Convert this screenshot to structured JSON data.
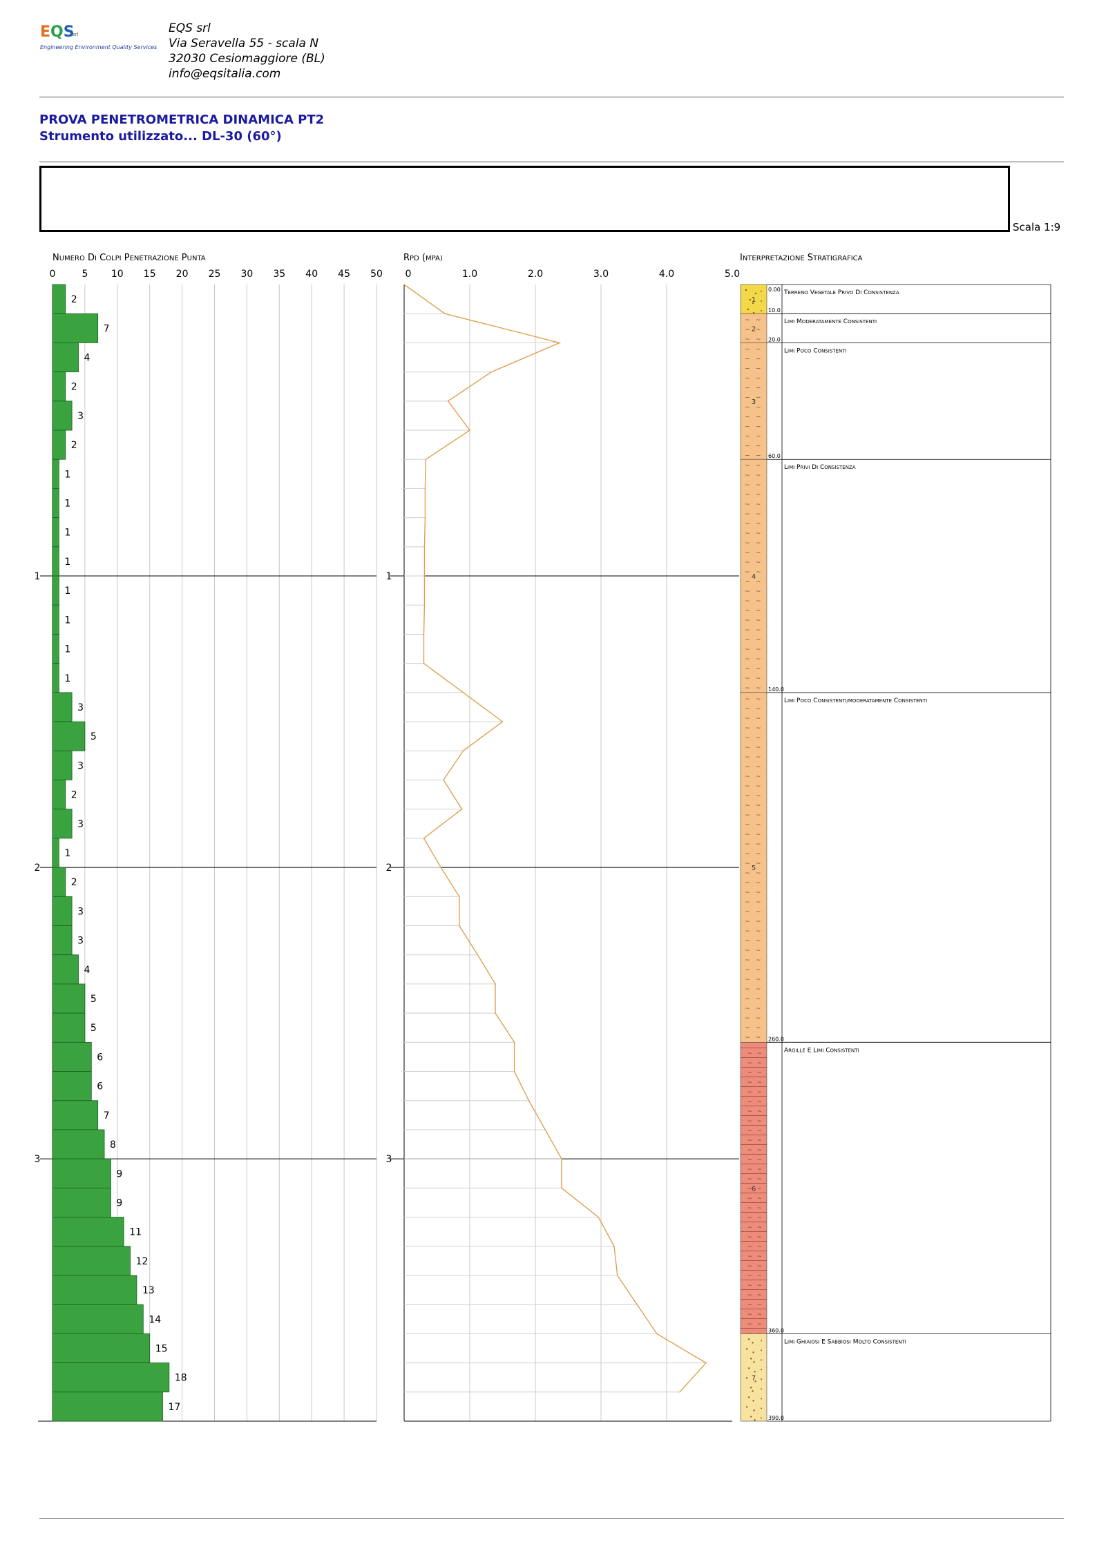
{
  "company": {
    "logo_text": "EQS",
    "logo_suffix": "srl",
    "logo_tagline": "Engineering Environment Quality Services",
    "name": "EQS srl",
    "address1": "Via Seravella 55 - scala N",
    "address2": "32030 Cesiomaggiore (BL)",
    "email": "info@eqsitalia.com"
  },
  "title": "PROVA PENETROMETRICA DINAMICA PT2",
  "instrument": "Strumento utilizzato... DL-30 (60°)",
  "scale": "Scala 1:9",
  "colors": {
    "blows_bar": "#3aa33f",
    "rpd_line": "#e0a050",
    "layer_yellow": "#f3d84a",
    "layer_orange": "#f6c28a",
    "layer_red": "#ee8c7c",
    "layer_sand": "#f7e2a0"
  },
  "chart_data": [
    {
      "type": "bar",
      "orientation": "horizontal",
      "title": "Numero di colpi penetrazione punta",
      "x_ticks": [
        "0",
        "5",
        "10",
        "15",
        "20",
        "25",
        "30",
        "35",
        "40",
        "45",
        "50"
      ],
      "xlim": [
        0,
        50
      ],
      "depth_ticks": [
        "1",
        "2",
        "3"
      ],
      "depth_step_cm": 10,
      "depth_range_m": [
        0,
        3.9
      ],
      "values": [
        2,
        7,
        4,
        2,
        3,
        2,
        1,
        1,
        1,
        1,
        1,
        1,
        1,
        1,
        3,
        5,
        3,
        2,
        3,
        1,
        2,
        3,
        3,
        4,
        5,
        5,
        6,
        6,
        7,
        8,
        9,
        9,
        11,
        12,
        13,
        14,
        15,
        18,
        17
      ]
    },
    {
      "type": "line",
      "orientation": "vertical-depth",
      "title": "Rpd (Mpa)",
      "x_ticks": [
        "0",
        "1.0",
        "2.0",
        "3.0",
        "4.0",
        "5.0"
      ],
      "xlim": [
        0,
        5
      ],
      "depth_ticks": [
        "1",
        "2",
        "3"
      ],
      "values": [
        0.0,
        0.62,
        2.37,
        1.33,
        0.67,
        1.0,
        0.33,
        0.32,
        0.32,
        0.31,
        0.31,
        0.31,
        0.3,
        0.3,
        0.9,
        1.5,
        0.9,
        0.6,
        0.88,
        0.3,
        0.56,
        0.84,
        0.84,
        1.12,
        1.39,
        1.39,
        1.68,
        1.68,
        1.9,
        2.15,
        2.4,
        2.4,
        2.96,
        3.2,
        3.25,
        3.55,
        3.85,
        4.6,
        4.2
      ]
    },
    {
      "type": "table",
      "title": "Interpretazione Stratigrafica",
      "layers": [
        {
          "id": "1",
          "top_cm": 0,
          "bottom_cm": 10,
          "top_label": "0.00",
          "bottom_label": "10.0",
          "description": "Terreno vegetale privo di consistenza",
          "color": "#f3d84a",
          "hatch": "dots"
        },
        {
          "id": "2",
          "top_cm": 10,
          "bottom_cm": 20,
          "bottom_label": "20.0",
          "description": "Limi moderatamente consistenti",
          "color": "#f6c28a",
          "hatch": "wave"
        },
        {
          "id": "3",
          "top_cm": 20,
          "bottom_cm": 60,
          "bottom_label": "60.0",
          "description": "Limi poco consistenti",
          "color": "#f6c28a",
          "hatch": "wave"
        },
        {
          "id": "4",
          "top_cm": 60,
          "bottom_cm": 140,
          "bottom_label": "140.0",
          "description": "Limi privi di consistenza",
          "color": "#f6c28a",
          "hatch": "wave"
        },
        {
          "id": "5",
          "top_cm": 140,
          "bottom_cm": 260,
          "bottom_label": "260.0",
          "description": "Limi poco consistenti/moderatamente consistenti",
          "color": "#f6c28a",
          "hatch": "wave"
        },
        {
          "id": "6",
          "top_cm": 260,
          "bottom_cm": 360,
          "bottom_label": "360.0",
          "description": "Argille e limi consistenti",
          "color": "#ee8c7c",
          "hatch": "clay"
        },
        {
          "id": "7",
          "top_cm": 360,
          "bottom_cm": 390,
          "bottom_label": "390.0",
          "description": "Limi ghiaiosi e sabbiosi molto consistenti",
          "color": "#f7e2a0",
          "hatch": "gravel"
        }
      ]
    }
  ]
}
